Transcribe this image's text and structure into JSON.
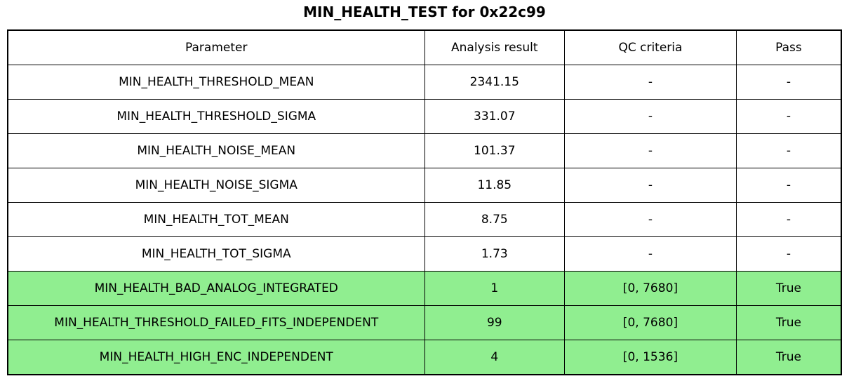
{
  "title": "MIN_HEALTH_TEST for 0x22c99",
  "colors": {
    "highlight_green": "#90EE90",
    "border": "#000000",
    "background": "#ffffff",
    "text": "#000000"
  },
  "chart_data": {
    "type": "table",
    "title": "MIN_HEALTH_TEST for 0x22c99",
    "columns": [
      "Parameter",
      "Analysis result",
      "QC criteria",
      "Pass"
    ],
    "rows": [
      {
        "cells": [
          "MIN_HEALTH_THRESHOLD_MEAN",
          "2341.15",
          "-",
          "-"
        ],
        "highlighted": false
      },
      {
        "cells": [
          "MIN_HEALTH_THRESHOLD_SIGMA",
          "331.07",
          "-",
          "-"
        ],
        "highlighted": false
      },
      {
        "cells": [
          "MIN_HEALTH_NOISE_MEAN",
          "101.37",
          "-",
          "-"
        ],
        "highlighted": false
      },
      {
        "cells": [
          "MIN_HEALTH_NOISE_SIGMA",
          "11.85",
          "-",
          "-"
        ],
        "highlighted": false
      },
      {
        "cells": [
          "MIN_HEALTH_TOT_MEAN",
          "8.75",
          "-",
          "-"
        ],
        "highlighted": false
      },
      {
        "cells": [
          "MIN_HEALTH_TOT_SIGMA",
          "1.73",
          "-",
          "-"
        ],
        "highlighted": false
      },
      {
        "cells": [
          "MIN_HEALTH_BAD_ANALOG_INTEGRATED",
          "1",
          "[0, 7680]",
          "True"
        ],
        "highlighted": true
      },
      {
        "cells": [
          "MIN_HEALTH_THRESHOLD_FAILED_FITS_INDEPENDENT",
          "99",
          "[0, 7680]",
          "True"
        ],
        "highlighted": true
      },
      {
        "cells": [
          "MIN_HEALTH_HIGH_ENC_INDEPENDENT",
          "4",
          "[0, 1536]",
          "True"
        ],
        "highlighted": true
      }
    ],
    "highlighted_rows": [
      6,
      7,
      8
    ],
    "layout": {
      "grid": true,
      "all_cells_centered": true
    }
  }
}
